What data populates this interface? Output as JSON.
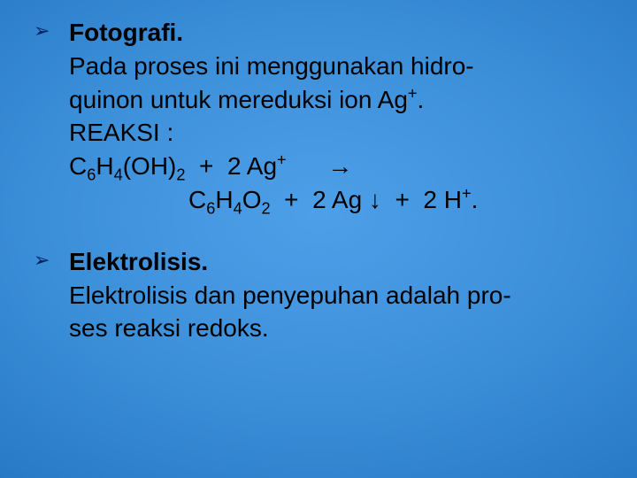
{
  "background": {
    "gradient_center": "#4da0e8",
    "gradient_mid1": "#3b8ed8",
    "gradient_mid2": "#2a7cc8",
    "gradient_mid3": "#1a6ab8",
    "gradient_edge": "#0f5aa8"
  },
  "bullet": {
    "glyph": "➢",
    "color": "#002060",
    "fontsize": 22
  },
  "text": {
    "color": "#000000",
    "fontsize": 28,
    "font_family": "Arial",
    "line_height": 1.35
  },
  "items": [
    {
      "title": "Fotografi.",
      "lines": [
        "Pada proses ini menggunakan hidro-",
        "quinon untuk mereduksi ion Ag+.",
        "REAKSI :",
        "C6H4(OH)2  +  2 Ag+      →",
        "                      C6H4O2  +  2 Ag ↓  +  2 H+."
      ],
      "segments": {
        "l0": "Pada proses ini menggunakan hidro-",
        "l1_a": "quinon untuk mereduksi ion Ag",
        "l1_sup": "+",
        "l1_b": ".",
        "l2": "REAKSI :",
        "l3_a": "C",
        "l3_s1": "6",
        "l3_b": "H",
        "l3_s2": "4",
        "l3_c": "(OH)",
        "l3_s3": "2",
        "l3_d": "  +  2 Ag",
        "l3_sup": "+",
        "l3_e": "      →",
        "l4_a": "C",
        "l4_s1": "6",
        "l4_b": "H",
        "l4_s2": "4",
        "l4_c": "O",
        "l4_s3": "2",
        "l4_d": "  +  2 Ag ↓  +  2 H",
        "l4_sup": "+",
        "l4_e": "."
      }
    },
    {
      "title": "Elektrolisis.",
      "lines": [
        "Elektrolisis dan penyepuhan adalah pro-",
        "ses reaksi redoks."
      ],
      "segments": {
        "l0": "Elektrolisis dan penyepuhan adalah pro-",
        "l1": "ses reaksi redoks."
      }
    }
  ]
}
